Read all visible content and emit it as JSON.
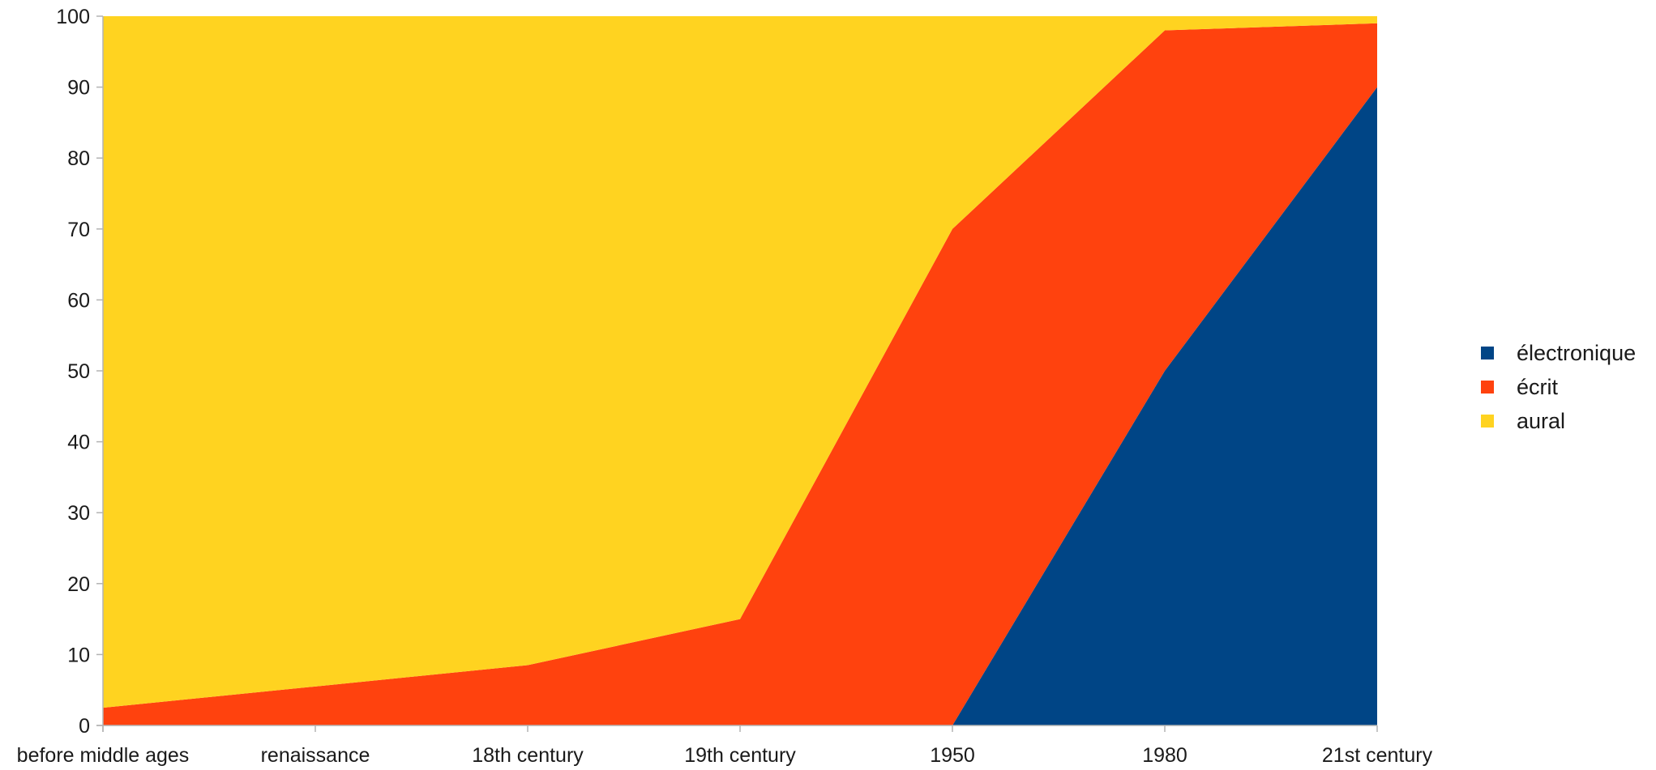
{
  "chart_data": {
    "type": "area",
    "stacked": true,
    "categories": [
      "before middle ages",
      "renaissance",
      "18th century",
      "19th century",
      "1950",
      "1980",
      "21st century"
    ],
    "series": [
      {
        "name": "électronique",
        "color": "#004586",
        "values": [
          0,
          0,
          0,
          0,
          0,
          50,
          90
        ]
      },
      {
        "name": "écrit",
        "color": "#ff420e",
        "values": [
          2.5,
          5.5,
          8.5,
          15,
          70,
          48,
          9
        ]
      },
      {
        "name": "aural",
        "color": "#ffd320",
        "values": [
          97.5,
          94.5,
          91.5,
          85,
          30,
          2,
          1
        ]
      }
    ],
    "ylim": [
      0,
      100
    ],
    "yticks": [
      0,
      10,
      20,
      30,
      40,
      50,
      60,
      70,
      80,
      90,
      100
    ],
    "grid": false,
    "legend_position": "right",
    "title": "",
    "xlabel": "",
    "ylabel": ""
  }
}
